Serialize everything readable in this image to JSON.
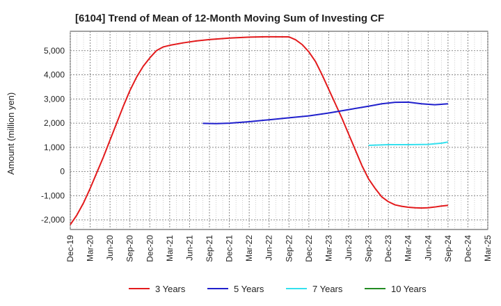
{
  "chart_data": {
    "type": "line",
    "title": "[6104]  Trend of Mean of 12-Month Moving Sum of Investing CF",
    "xlabel": "",
    "ylabel": "Amount (million yen)",
    "ylim": [
      -2400,
      5800
    ],
    "yticks": [
      5000,
      4000,
      3000,
      2000,
      1000,
      0,
      -1000,
      -2000
    ],
    "ytick_labels": [
      "5,000",
      "4,000",
      "3,000",
      "2,000",
      "1,000",
      "0",
      "-1,000",
      "-2,000"
    ],
    "x_range": [
      "2019-12",
      "2025-03"
    ],
    "x_ticks": [
      "2019-12",
      "2020-03",
      "2020-06",
      "2020-09",
      "2020-12",
      "2021-03",
      "2021-06",
      "2021-09",
      "2021-12",
      "2022-03",
      "2022-06",
      "2022-09",
      "2022-12",
      "2023-03",
      "2023-06",
      "2023-09",
      "2023-12",
      "2024-03",
      "2024-06",
      "2024-09",
      "2024-12",
      "2025-03"
    ],
    "xtick_labels": [
      "Dec-19",
      "Mar-20",
      "Jun-20",
      "Sep-20",
      "Dec-20",
      "Mar-21",
      "Jun-21",
      "Sep-21",
      "Dec-21",
      "Mar-22",
      "Jun-22",
      "Sep-22",
      "Dec-22",
      "Mar-23",
      "Jun-23",
      "Sep-23",
      "Dec-23",
      "Mar-24",
      "Jun-24",
      "Sep-24",
      "Dec-24",
      "Mar-25"
    ],
    "grid": true,
    "legend_position": "bottom",
    "series": [
      {
        "name": "3 Years",
        "color": "#e31a1c",
        "points": [
          [
            "2019-12",
            -2200
          ],
          [
            "2020-01",
            -1800
          ],
          [
            "2020-02",
            -1300
          ],
          [
            "2020-03",
            -700
          ],
          [
            "2020-04",
            -50
          ],
          [
            "2020-05",
            600
          ],
          [
            "2020-06",
            1300
          ],
          [
            "2020-07",
            2000
          ],
          [
            "2020-08",
            2700
          ],
          [
            "2020-09",
            3350
          ],
          [
            "2020-10",
            3900
          ],
          [
            "2020-11",
            4350
          ],
          [
            "2020-12",
            4700
          ],
          [
            "2021-01",
            5000
          ],
          [
            "2021-02",
            5150
          ],
          [
            "2021-03",
            5220
          ],
          [
            "2021-05",
            5320
          ],
          [
            "2021-07",
            5400
          ],
          [
            "2021-09",
            5460
          ],
          [
            "2021-12",
            5520
          ],
          [
            "2022-03",
            5560
          ],
          [
            "2022-06",
            5575
          ],
          [
            "2022-09",
            5570
          ],
          [
            "2022-10",
            5450
          ],
          [
            "2022-11",
            5250
          ],
          [
            "2022-12",
            4950
          ],
          [
            "2023-01",
            4550
          ],
          [
            "2023-02",
            4000
          ],
          [
            "2023-03",
            3400
          ],
          [
            "2023-04",
            2800
          ],
          [
            "2023-05",
            2200
          ],
          [
            "2023-06",
            1550
          ],
          [
            "2023-07",
            900
          ],
          [
            "2023-08",
            250
          ],
          [
            "2023-09",
            -300
          ],
          [
            "2023-10",
            -700
          ],
          [
            "2023-11",
            -1050
          ],
          [
            "2023-12",
            -1250
          ],
          [
            "2024-01",
            -1380
          ],
          [
            "2024-02",
            -1440
          ],
          [
            "2024-03",
            -1480
          ],
          [
            "2024-04",
            -1500
          ],
          [
            "2024-05",
            -1510
          ],
          [
            "2024-06",
            -1500
          ],
          [
            "2024-07",
            -1470
          ],
          [
            "2024-08",
            -1430
          ],
          [
            "2024-09",
            -1400
          ]
        ]
      },
      {
        "name": "5 Years",
        "color": "#1f1fcc",
        "points": [
          [
            "2021-08",
            1990
          ],
          [
            "2021-10",
            1980
          ],
          [
            "2021-12",
            2000
          ],
          [
            "2022-03",
            2060
          ],
          [
            "2022-06",
            2140
          ],
          [
            "2022-09",
            2220
          ],
          [
            "2022-12",
            2300
          ],
          [
            "2023-03",
            2420
          ],
          [
            "2023-06",
            2560
          ],
          [
            "2023-09",
            2700
          ],
          [
            "2023-11",
            2800
          ],
          [
            "2024-01",
            2860
          ],
          [
            "2024-03",
            2870
          ],
          [
            "2024-05",
            2800
          ],
          [
            "2024-07",
            2760
          ],
          [
            "2024-09",
            2800
          ]
        ]
      },
      {
        "name": "7 Years",
        "color": "#33e0ee",
        "points": [
          [
            "2023-09",
            1080
          ],
          [
            "2023-12",
            1110
          ],
          [
            "2024-03",
            1110
          ],
          [
            "2024-06",
            1120
          ],
          [
            "2024-08",
            1170
          ],
          [
            "2024-09",
            1220
          ]
        ]
      },
      {
        "name": "10 Years",
        "color": "#228b22",
        "points": []
      }
    ]
  }
}
